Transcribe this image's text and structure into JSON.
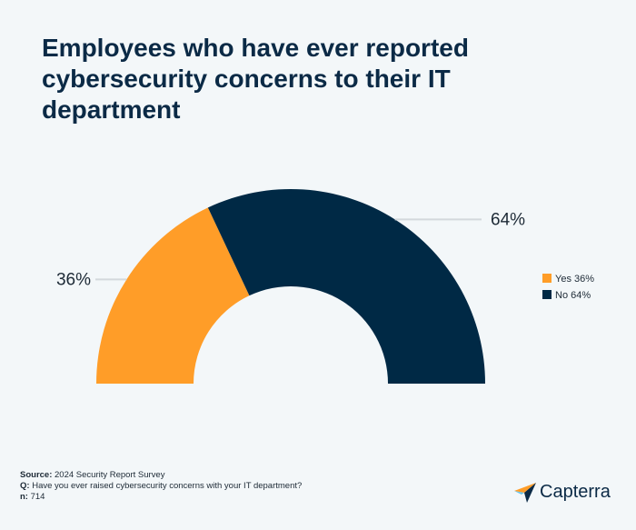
{
  "chart_data": {
    "type": "pie",
    "half": true,
    "title": "Employees who have ever reported cybersecurity concerns to their IT department",
    "categories": [
      "Yes 36%",
      "No 64%"
    ],
    "values": [
      36,
      64
    ],
    "value_labels": [
      "36%",
      "64%"
    ],
    "colors": [
      "#ff9d28",
      "#002945"
    ],
    "legend": "right",
    "source_label": "Source:",
    "source": "2024 Security Report Survey",
    "question_label": "Q:",
    "question": "Have you ever raised cybersecurity concerns with your IT department?",
    "n_label": "n:",
    "n": 714
  },
  "logo": "Capterra"
}
